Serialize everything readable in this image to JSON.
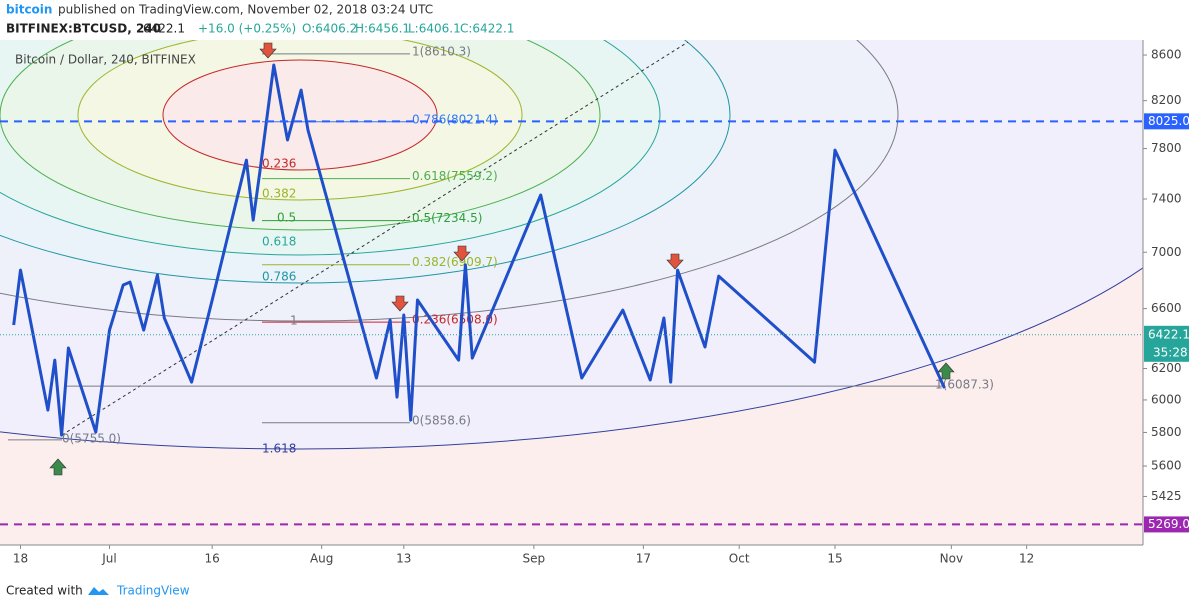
{
  "header": {
    "author": "bitcoin",
    "published": "published on TradingView.com, November 02, 2018 03:24 UTC",
    "symbol": "BITFINEX:BTCUSD, 240",
    "last": "6422.1",
    "change": "+16.0 (+0.25%)",
    "open": "O:6406.2",
    "high": "H:6456.1",
    "low": "L:6406.1",
    "close": "C:6422.1"
  },
  "footer": {
    "created": "Created with",
    "brand": "TradingView"
  },
  "chart_data": {
    "type": "line",
    "legend_title": "Bitcoin / Dollar, 240, BITFINEX",
    "log_scale": true,
    "xlim": [
      "2018-06-15",
      "2018-11-29"
    ],
    "xticks": [
      {
        "value": "2018-06-18",
        "label": "18"
      },
      {
        "value": "2018-07-01",
        "label": "Jul"
      },
      {
        "value": "2018-07-16",
        "label": "16"
      },
      {
        "value": "2018-08-01",
        "label": "Aug"
      },
      {
        "value": "2018-08-13",
        "label": "13"
      },
      {
        "value": "2018-09-01",
        "label": "Sep"
      },
      {
        "value": "2018-09-17",
        "label": "17"
      },
      {
        "value": "2018-10-01",
        "label": "Oct"
      },
      {
        "value": "2018-10-15",
        "label": "15"
      },
      {
        "value": "2018-11-01",
        "label": "Nov"
      },
      {
        "value": "2018-11-12",
        "label": "12"
      }
    ],
    "ylim": [
      5157,
      8736
    ],
    "yticks": [
      8600,
      8200,
      7800,
      7400,
      7000,
      6600,
      6200,
      6000,
      5800,
      5600,
      5425
    ],
    "series": [
      {
        "color": "#1f4fc9",
        "x": [
          "2018-06-17",
          "2018-06-18",
          "2018-06-22",
          "2018-06-23",
          "2018-06-24",
          "2018-06-25",
          "2018-06-29",
          "2018-07-01",
          "2018-07-03",
          "2018-07-04",
          "2018-07-06",
          "2018-07-08",
          "2018-07-09",
          "2018-07-13",
          "2018-07-16",
          "2018-07-21",
          "2018-07-22",
          "2018-07-23",
          "2018-07-25",
          "2018-07-27",
          "2018-07-29",
          "2018-07-30",
          "2018-08-09",
          "2018-08-11",
          "2018-08-12",
          "2018-08-13",
          "2018-08-14",
          "2018-08-15",
          "2018-08-21",
          "2018-08-22",
          "2018-08-23",
          "2018-09-02",
          "2018-09-08",
          "2018-09-14",
          "2018-09-18",
          "2018-09-20",
          "2018-09-21",
          "2018-09-22",
          "2018-09-26",
          "2018-09-28",
          "2018-10-12",
          "2018-10-15",
          "2018-10-31"
        ],
        "values": [
          6488,
          6871,
          5937,
          6255,
          5784,
          6334,
          5802,
          6454,
          6765,
          6785,
          6454,
          6836,
          6536,
          6113,
          6660,
          7707,
          7239,
          7627,
          8511,
          7870,
          8291,
          7952,
          6139,
          6522,
          6018,
          6556,
          5875,
          6660,
          6255,
          6908,
          6268,
          7431,
          6139,
          6590,
          6126,
          6536,
          6113,
          6871,
          6341,
          6828,
          6242,
          7788,
          6075
        ]
      }
    ],
    "current_price": {
      "value": 6422.1,
      "label": "6422.1",
      "countdown": "35:28",
      "color": "#26a69a"
    },
    "price_lines": [
      {
        "value": 8025.0,
        "label": "8025.0",
        "color": "#2962ff"
      },
      {
        "value": 5269.0,
        "label": "5269.0",
        "color": "#9c27b0"
      }
    ],
    "fib_retracement": [
      {
        "value": 8610.3,
        "label": "1(8610.3)",
        "color": "#787b86"
      },
      {
        "value": 8021.4,
        "label": "0.786(8021.4)",
        "color": "#3179f5"
      },
      {
        "value": 7559.2,
        "label": "0.618(7559.2)",
        "color": "#4caf50"
      },
      {
        "value": 7234.5,
        "label": "0.5(7234.5)",
        "color": "#2e9e3a"
      },
      {
        "value": 6909.7,
        "label": "0.382(6909.7)",
        "color": "#9cb42a"
      },
      {
        "value": 6508.0,
        "label": "0.236(6508.0)",
        "color": "#c62828"
      },
      {
        "value": 5858.6,
        "label": "0(5858.6)",
        "color": "#787b86"
      }
    ],
    "fib_extension": [
      {
        "value": 6087.3,
        "label": "1(6087.3)",
        "color": "#787b86"
      },
      {
        "value": 5755.0,
        "label": "0(5755.0)",
        "color": "#787b86"
      }
    ],
    "fib_circle_labels": [
      {
        "value": 0.236,
        "color": "#c62828"
      },
      {
        "value": 0.382,
        "color": "#9cb42a"
      },
      {
        "value": 0.5,
        "color": "#2e9e3a"
      },
      {
        "value": 0.618,
        "color": "#26a69a"
      },
      {
        "value": 0.786,
        "color": "#2196a3"
      },
      {
        "value": 1,
        "color": "#787b86"
      },
      {
        "value": 1.618,
        "color": "#303f9f"
      }
    ]
  }
}
